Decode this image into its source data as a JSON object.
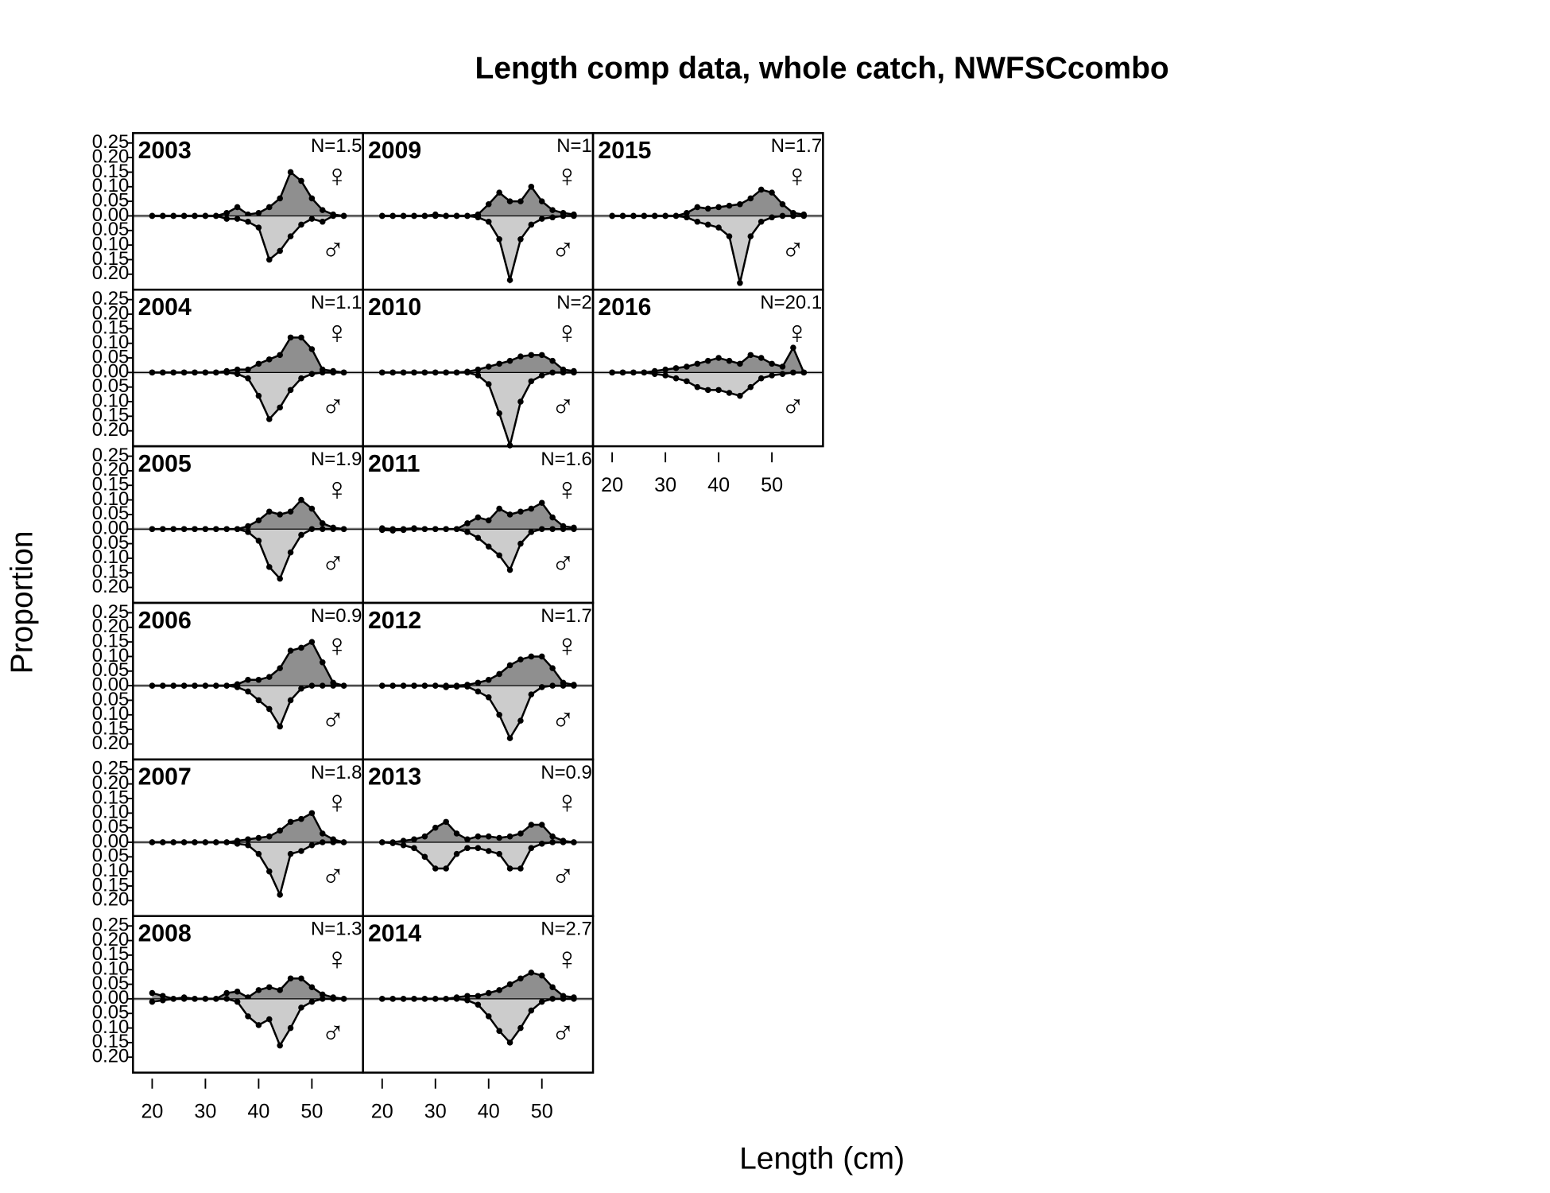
{
  "chart_data": {
    "type": "mirrored-area",
    "title": "Length comp data, whole catch, NWFSCcombo",
    "x_label": "Length (cm)",
    "y_label": "Proportion",
    "x": [
      20,
      22,
      24,
      26,
      28,
      30,
      32,
      34,
      36,
      38,
      40,
      42,
      44,
      46,
      48,
      50,
      52,
      54,
      56
    ],
    "xlim": [
      16.4,
      59.6
    ],
    "xticks": [
      20,
      30,
      40,
      50
    ],
    "ylim": [
      -0.253,
      0.284
    ],
    "yticks": [
      {
        "value": -0.2,
        "label": "0.20"
      },
      {
        "value": -0.15,
        "label": "0.15"
      },
      {
        "value": -0.1,
        "label": "0.10"
      },
      {
        "value": -0.05,
        "label": "0.05"
      },
      {
        "value": 0,
        "label": "0.00"
      },
      0.05,
      {
        "value": 0.1,
        "label": "0.10"
      },
      0.15,
      {
        "value": 0.2,
        "label": "0.20"
      },
      0.25
    ],
    "panels": [
      {
        "title": "2003",
        "n_label": "N=1.5",
        "series": [
          {
            "name": "♀",
            "color": "#8f8f8f",
            "label_color": "#e0282e",
            "values": [
              0,
              0,
              0,
              0,
              0,
              0,
              0,
              0.01,
              0.03,
              0.005,
              0.01,
              0.03,
              0.06,
              0.15,
              0.12,
              0.06,
              0.02,
              0.005,
              0
            ]
          },
          {
            "name": "♂",
            "color": "#cccccc",
            "label_color": "#2b2bd0",
            "values": [
              0,
              0,
              0,
              0,
              0,
              0,
              0,
              -0.01,
              -0.01,
              -0.02,
              -0.04,
              -0.15,
              -0.12,
              -0.07,
              -0.03,
              -0.01,
              -0.02,
              0,
              0
            ]
          }
        ]
      },
      {
        "title": "2004",
        "n_label": "N=1.1",
        "series": [
          {
            "name": "♀",
            "color": "#8f8f8f",
            "label_color": "#e0282e",
            "values": [
              0,
              0,
              0,
              0,
              0,
              0,
              0,
              0.005,
              0.01,
              0.01,
              0.03,
              0.045,
              0.06,
              0.12,
              0.12,
              0.08,
              0.01,
              0.005,
              0
            ]
          },
          {
            "name": "♂",
            "color": "#cccccc",
            "label_color": "#2b2bd0",
            "values": [
              0,
              0,
              0,
              0,
              0,
              0,
              0,
              0,
              -0.005,
              -0.02,
              -0.08,
              -0.16,
              -0.12,
              -0.06,
              -0.02,
              -0.005,
              0,
              0,
              0
            ]
          }
        ]
      },
      {
        "title": "2005",
        "n_label": "N=1.9",
        "series": [
          {
            "name": "♀",
            "color": "#8f8f8f",
            "label_color": "#e0282e",
            "values": [
              0,
              0,
              0,
              0,
              0,
              0,
              0,
              0,
              0,
              0.01,
              0.03,
              0.06,
              0.05,
              0.06,
              0.1,
              0.07,
              0.02,
              0.005,
              0
            ]
          },
          {
            "name": "♂",
            "color": "#cccccc",
            "label_color": "#2b2bd0",
            "values": [
              0,
              0,
              0,
              0,
              0,
              0,
              0,
              0,
              0,
              -0.01,
              -0.04,
              -0.13,
              -0.17,
              -0.08,
              -0.02,
              0,
              0,
              0,
              0
            ]
          }
        ]
      },
      {
        "title": "2006",
        "n_label": "N=0.9",
        "series": [
          {
            "name": "♀",
            "color": "#8f8f8f",
            "label_color": "#e0282e",
            "values": [
              0,
              0,
              0,
              0,
              0,
              0,
              0,
              0,
              0.005,
              0.02,
              0.02,
              0.03,
              0.06,
              0.12,
              0.13,
              0.15,
              0.08,
              0.01,
              0
            ]
          },
          {
            "name": "♂",
            "color": "#cccccc",
            "label_color": "#2b2bd0",
            "values": [
              0,
              0,
              0,
              0,
              0,
              0,
              0,
              0,
              -0.005,
              -0.02,
              -0.05,
              -0.08,
              -0.14,
              -0.05,
              -0.01,
              0,
              0,
              0,
              0
            ]
          }
        ]
      },
      {
        "title": "2007",
        "n_label": "N=1.8",
        "series": [
          {
            "name": "♀",
            "color": "#8f8f8f",
            "label_color": "#e0282e",
            "values": [
              0,
              0,
              0,
              0,
              0,
              0,
              0,
              0,
              0.005,
              0.01,
              0.015,
              0.02,
              0.04,
              0.07,
              0.08,
              0.1,
              0.03,
              0.01,
              0
            ]
          },
          {
            "name": "♂",
            "color": "#cccccc",
            "label_color": "#2b2bd0",
            "values": [
              0,
              0,
              0,
              0,
              0,
              0,
              0,
              0,
              -0.005,
              -0.01,
              -0.04,
              -0.1,
              -0.18,
              -0.04,
              -0.03,
              -0.01,
              0,
              0,
              0
            ]
          }
        ]
      },
      {
        "title": "2008",
        "n_label": "N=1.3",
        "series": [
          {
            "name": "♀",
            "color": "#8f8f8f",
            "label_color": "#e0282e",
            "values": [
              0.02,
              0.01,
              0,
              0.005,
              0,
              0,
              0,
              0.02,
              0.025,
              0.005,
              0.03,
              0.04,
              0.03,
              0.07,
              0.07,
              0.04,
              0.015,
              0.005,
              0
            ]
          },
          {
            "name": "♂",
            "color": "#cccccc",
            "label_color": "#2b2bd0",
            "values": [
              -0.01,
              -0.005,
              0,
              0,
              0,
              0,
              0,
              0,
              -0.01,
              -0.06,
              -0.09,
              -0.07,
              -0.16,
              -0.1,
              -0.03,
              -0.01,
              0,
              0,
              0
            ]
          }
        ]
      },
      {
        "title": "2009",
        "n_label": "N=1",
        "series": [
          {
            "name": "♀",
            "color": "#8f8f8f",
            "label_color": "#e0282e",
            "values": [
              0,
              0,
              0,
              0,
              0,
              0.005,
              0,
              0,
              0,
              0.005,
              0.04,
              0.08,
              0.05,
              0.05,
              0.1,
              0.05,
              0.02,
              0.01,
              0.005
            ]
          },
          {
            "name": "♂",
            "color": "#cccccc",
            "label_color": "#2b2bd0",
            "values": [
              0,
              0,
              0,
              0,
              0,
              0,
              0,
              0,
              0,
              -0.005,
              -0.02,
              -0.08,
              -0.22,
              -0.08,
              -0.03,
              -0.01,
              -0.005,
              0,
              0
            ]
          }
        ]
      },
      {
        "title": "2010",
        "n_label": "N=2",
        "series": [
          {
            "name": "♀",
            "color": "#8f8f8f",
            "label_color": "#e0282e",
            "values": [
              0,
              0,
              0,
              0,
              0,
              0,
              0,
              0,
              0.003,
              0.01,
              0.02,
              0.03,
              0.04,
              0.055,
              0.06,
              0.06,
              0.04,
              0.01,
              0.005
            ]
          },
          {
            "name": "♂",
            "color": "#cccccc",
            "label_color": "#2b2bd0",
            "values": [
              0,
              0,
              0,
              0,
              0,
              0,
              0,
              0,
              0,
              -0.01,
              -0.04,
              -0.14,
              -0.25,
              -0.1,
              -0.03,
              -0.01,
              0,
              0,
              0
            ]
          }
        ]
      },
      {
        "title": "2011",
        "n_label": "N=1.6",
        "series": [
          {
            "name": "♀",
            "color": "#8f8f8f",
            "label_color": "#e0282e",
            "values": [
              0.003,
              0,
              0,
              0.003,
              0,
              0,
              0,
              0,
              0.02,
              0.04,
              0.03,
              0.07,
              0.05,
              0.06,
              0.07,
              0.09,
              0.04,
              0.01,
              0.005
            ]
          },
          {
            "name": "♂",
            "color": "#cccccc",
            "label_color": "#2b2bd0",
            "values": [
              -0.003,
              -0.005,
              -0.003,
              0,
              0,
              0,
              0,
              0,
              -0.01,
              -0.03,
              -0.06,
              -0.09,
              -0.14,
              -0.05,
              -0.01,
              0,
              0,
              0,
              0
            ]
          }
        ]
      },
      {
        "title": "2012",
        "n_label": "N=1.7",
        "series": [
          {
            "name": "♀",
            "color": "#8f8f8f",
            "label_color": "#e0282e",
            "values": [
              0,
              0,
              0,
              0,
              0,
              0,
              0,
              0,
              0.003,
              0.01,
              0.02,
              0.04,
              0.07,
              0.09,
              0.1,
              0.1,
              0.06,
              0.01,
              0.003
            ]
          },
          {
            "name": "♂",
            "color": "#cccccc",
            "label_color": "#2b2bd0",
            "values": [
              0,
              0,
              0,
              0,
              0,
              0,
              -0.005,
              -0.003,
              -0.003,
              -0.02,
              -0.04,
              -0.1,
              -0.18,
              -0.12,
              -0.03,
              -0.005,
              0,
              0,
              0
            ]
          }
        ]
      },
      {
        "title": "2013",
        "n_label": "N=0.9",
        "series": [
          {
            "name": "♀",
            "color": "#8f8f8f",
            "label_color": "#e0282e",
            "values": [
              0,
              0,
              0.005,
              0.01,
              0.02,
              0.05,
              0.07,
              0.03,
              0.01,
              0.02,
              0.02,
              0.015,
              0.02,
              0.03,
              0.06,
              0.06,
              0.02,
              0.005,
              0
            ]
          },
          {
            "name": "♂",
            "color": "#cccccc",
            "label_color": "#2b2bd0",
            "values": [
              0,
              -0.003,
              -0.01,
              -0.02,
              -0.05,
              -0.09,
              -0.09,
              -0.04,
              -0.02,
              -0.02,
              -0.03,
              -0.04,
              -0.09,
              -0.09,
              -0.02,
              -0.005,
              0,
              0,
              0
            ]
          }
        ]
      },
      {
        "title": "2014",
        "n_label": "N=2.7",
        "series": [
          {
            "name": "♀",
            "color": "#8f8f8f",
            "label_color": "#e0282e",
            "values": [
              0,
              0,
              0,
              0,
              0,
              0,
              0,
              0.005,
              0.01,
              0.01,
              0.02,
              0.03,
              0.05,
              0.07,
              0.09,
              0.08,
              0.04,
              0.01,
              0.005
            ]
          },
          {
            "name": "♂",
            "color": "#cccccc",
            "label_color": "#2b2bd0",
            "values": [
              0,
              0,
              0,
              0,
              0,
              0,
              0,
              0,
              -0.005,
              -0.02,
              -0.06,
              -0.11,
              -0.15,
              -0.1,
              -0.04,
              -0.01,
              0,
              0,
              0
            ]
          }
        ]
      },
      {
        "title": "2015",
        "n_label": "N=1.7",
        "series": [
          {
            "name": "♀",
            "color": "#8f8f8f",
            "label_color": "#e0282e",
            "values": [
              0,
              0,
              0,
              0,
              0,
              0,
              0,
              0.01,
              0.03,
              0.025,
              0.03,
              0.035,
              0.04,
              0.06,
              0.09,
              0.08,
              0.04,
              0.01,
              0.005
            ]
          },
          {
            "name": "♂",
            "color": "#cccccc",
            "label_color": "#2b2bd0",
            "values": [
              0,
              0,
              0,
              0,
              0,
              0,
              0,
              -0.005,
              -0.02,
              -0.03,
              -0.04,
              -0.07,
              -0.23,
              -0.07,
              -0.02,
              -0.005,
              0,
              0,
              0
            ]
          }
        ]
      },
      {
        "title": "2016",
        "n_label": "N=20.1",
        "series": [
          {
            "name": "♀",
            "color": "#8f8f8f",
            "label_color": "#e0282e",
            "values": [
              0,
              0,
              0,
              0,
              0.005,
              0.01,
              0.015,
              0.02,
              0.03,
              0.04,
              0.05,
              0.04,
              0.03,
              0.06,
              0.05,
              0.03,
              0.02,
              0.085,
              0
            ]
          },
          {
            "name": "♂",
            "color": "#cccccc",
            "label_color": "#2b2bd0",
            "values": [
              0,
              0,
              0,
              0,
              -0.005,
              -0.01,
              -0.02,
              -0.03,
              -0.05,
              -0.06,
              -0.06,
              -0.07,
              -0.08,
              -0.05,
              -0.02,
              -0.01,
              -0.005,
              0,
              0
            ]
          }
        ]
      }
    ]
  }
}
